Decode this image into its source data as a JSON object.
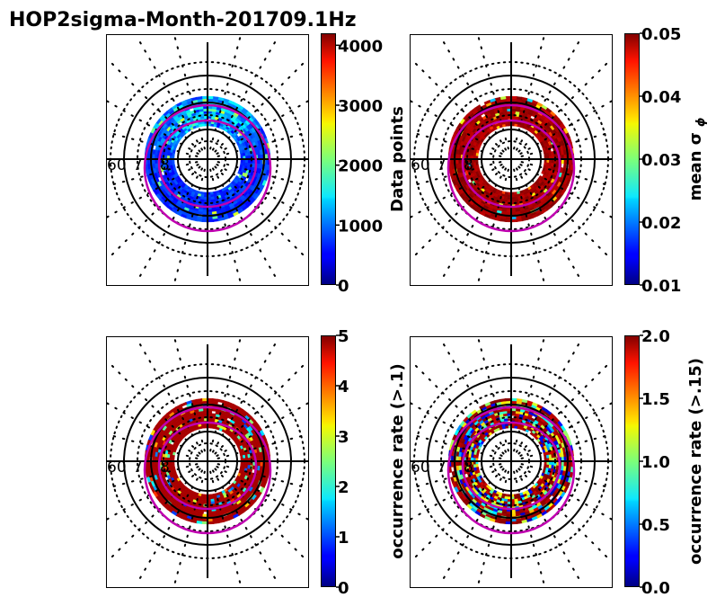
{
  "figure": {
    "title": "HOP2sigma-Month-201709.1Hz"
  },
  "chart_data": [
    {
      "type": "heatmap",
      "projection": "polar (magnetic latitude / MLT)",
      "variable": "Data points",
      "colormap": "jet",
      "colorbar": {
        "label": "Data points",
        "min": 0,
        "max": 4200,
        "ticks": [
          "0",
          "1000",
          "2000",
          "3000",
          "4000"
        ]
      },
      "lat_labels": [
        "60",
        "7",
        "8"
      ],
      "dominant": "low values (blue) with higher counts on the dayside (top)"
    },
    {
      "type": "heatmap",
      "projection": "polar (magnetic latitude / MLT)",
      "variable": "mean σφ",
      "colormap": "jet",
      "colorbar": {
        "label": "mean σ",
        "label_sub": "ϕ",
        "min": 0.01,
        "max": 0.05,
        "ticks": [
          "0.01",
          "0.02",
          "0.03",
          "0.04",
          "0.05"
        ]
      },
      "lat_labels": [
        "60",
        "7",
        "8"
      ],
      "dominant": "saturated high values (dark red)"
    },
    {
      "type": "heatmap",
      "projection": "polar (magnetic latitude / MLT)",
      "variable": "occurrence rate (>.1)",
      "colormap": "jet",
      "colorbar": {
        "label": "occurrence rate (>.1)",
        "min": 0,
        "max": 5,
        "ticks": [
          "0",
          "1",
          "2",
          "3",
          "4",
          "5"
        ]
      },
      "lat_labels": [
        "60",
        "7",
        "8"
      ],
      "dominant": "mostly saturated (dark red) with scattered lower values"
    },
    {
      "type": "heatmap",
      "projection": "polar (magnetic latitude / MLT)",
      "variable": "occurrence rate (>.15)",
      "colormap": "jet",
      "colorbar": {
        "label": "occurrence rate (>.15)",
        "min": 0.0,
        "max": 2.0,
        "ticks": [
          "0.0",
          "0.5",
          "1.0",
          "1.5",
          "2.0"
        ]
      },
      "lat_labels": [
        "60",
        "7",
        "8"
      ],
      "dominant": "mixed values, more blue/yellow variability"
    }
  ],
  "colors": {
    "oval": "#c000b0",
    "grid": "#000000",
    "frame": "#000000"
  }
}
